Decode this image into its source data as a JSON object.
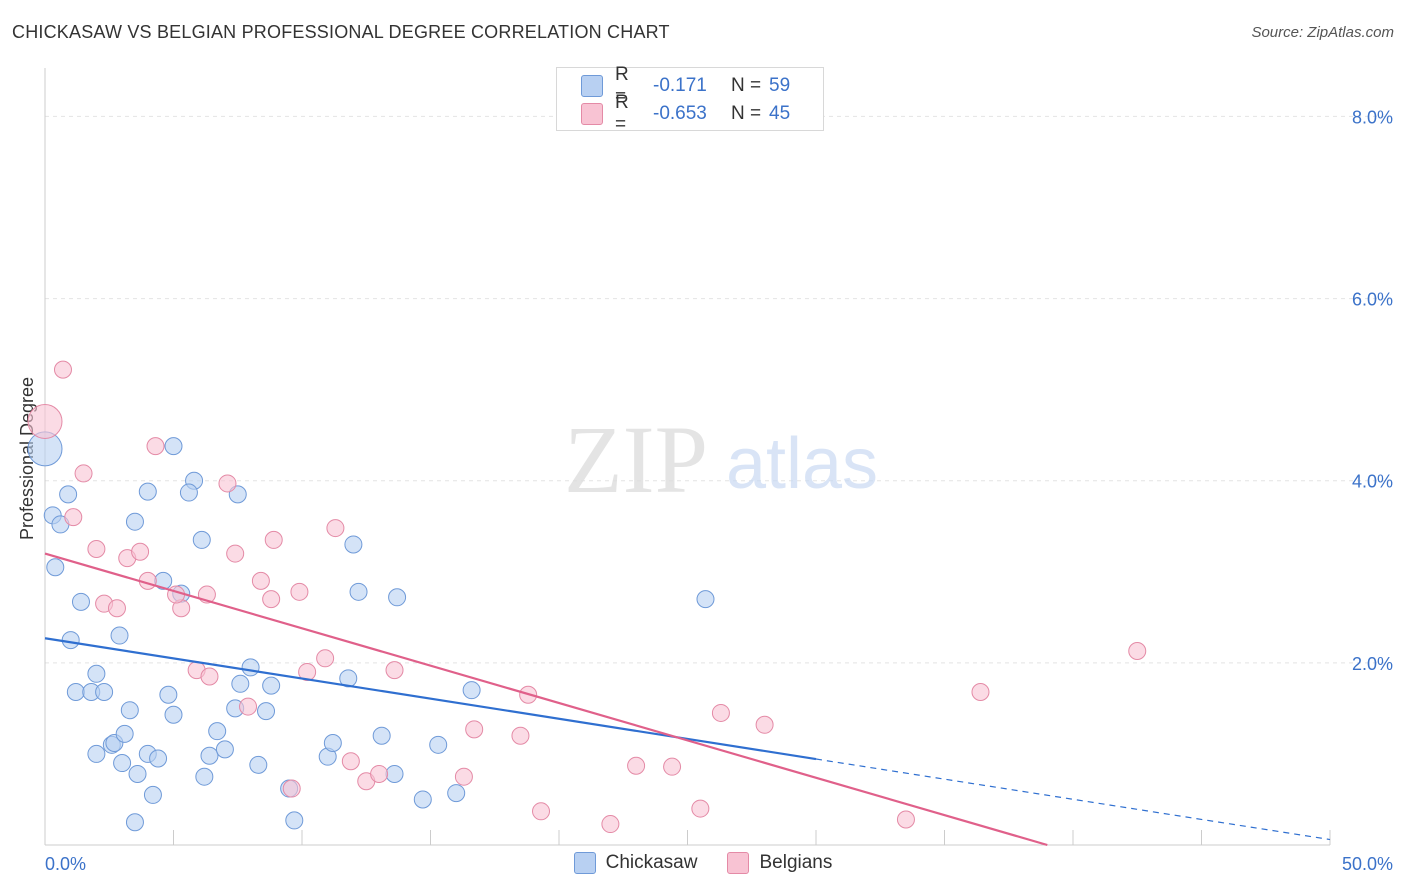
{
  "title": "CHICKASAW VS BELGIAN PROFESSIONAL DEGREE CORRELATION CHART",
  "source": "Source: ZipAtlas.com",
  "watermark": {
    "zip": "ZIP",
    "atlas": "atlas"
  },
  "legend": {
    "r_label": "R =",
    "n_label": "N =",
    "series": [
      {
        "name": "Chickasaw",
        "r": "-0.171",
        "n": "59",
        "fill": "#b8d0f2",
        "stroke": "#6f9ad8"
      },
      {
        "name": "Belgians",
        "r": "-0.653",
        "n": "45",
        "fill": "#f8c3d3",
        "stroke": "#e48aa6"
      }
    ]
  },
  "chart_data": {
    "type": "scatter",
    "title": "CHICKASAW VS BELGIAN PROFESSIONAL DEGREE CORRELATION CHART",
    "xlabel": "",
    "ylabel": "Professional Degree",
    "xlim": [
      0,
      50
    ],
    "ylim": [
      0,
      8.4
    ],
    "x_tick_labels": [
      "0.0%",
      "50.0%"
    ],
    "y_ticks": [
      2,
      4,
      6,
      8
    ],
    "y_tick_labels": [
      "2.0%",
      "4.0%",
      "6.0%",
      "8.0%"
    ],
    "grid": true,
    "series": [
      {
        "name": "Chickasaw",
        "color": "#6f9ad8",
        "fill": "#b8d0f2",
        "line_color": "#2f6fd0",
        "trend": {
          "x0": 0,
          "y0": 2.27,
          "x1": 50,
          "y1": 0.06,
          "solid_until": 30
        },
        "points": [
          [
            0.0,
            4.35
          ],
          [
            0.3,
            3.62
          ],
          [
            0.6,
            3.52
          ],
          [
            0.4,
            3.05
          ],
          [
            0.9,
            3.85
          ],
          [
            1.4,
            2.67
          ],
          [
            1.0,
            2.25
          ],
          [
            1.2,
            1.68
          ],
          [
            1.8,
            1.68
          ],
          [
            2.3,
            1.68
          ],
          [
            2.0,
            1.88
          ],
          [
            2.9,
            2.3
          ],
          [
            3.3,
            1.48
          ],
          [
            2.6,
            1.1
          ],
          [
            2.7,
            1.12
          ],
          [
            3.5,
            3.55
          ],
          [
            4.0,
            3.88
          ],
          [
            5.0,
            4.38
          ],
          [
            5.8,
            4.0
          ],
          [
            5.6,
            3.87
          ],
          [
            6.1,
            3.35
          ],
          [
            7.5,
            3.85
          ],
          [
            4.6,
            2.9
          ],
          [
            5.3,
            2.76
          ],
          [
            4.8,
            1.65
          ],
          [
            5.0,
            1.43
          ],
          [
            3.1,
            1.22
          ],
          [
            2.0,
            1.0
          ],
          [
            4.0,
            1.0
          ],
          [
            4.4,
            0.95
          ],
          [
            3.0,
            0.9
          ],
          [
            3.6,
            0.78
          ],
          [
            4.2,
            0.55
          ],
          [
            3.5,
            0.25
          ],
          [
            6.2,
            0.75
          ],
          [
            6.4,
            0.98
          ],
          [
            7.0,
            1.05
          ],
          [
            6.7,
            1.25
          ],
          [
            7.4,
            1.5
          ],
          [
            7.6,
            1.77
          ],
          [
            8.0,
            1.95
          ],
          [
            8.8,
            1.75
          ],
          [
            8.6,
            1.47
          ],
          [
            8.3,
            0.88
          ],
          [
            9.5,
            0.62
          ],
          [
            9.7,
            0.27
          ],
          [
            11.0,
            0.97
          ],
          [
            11.2,
            1.12
          ],
          [
            11.8,
            1.83
          ],
          [
            12.2,
            2.78
          ],
          [
            12.0,
            3.3
          ],
          [
            13.7,
            2.72
          ],
          [
            13.1,
            1.2
          ],
          [
            13.6,
            0.78
          ],
          [
            14.7,
            0.5
          ],
          [
            15.3,
            1.1
          ],
          [
            16.0,
            0.57
          ],
          [
            16.6,
            1.7
          ],
          [
            25.7,
            2.7
          ]
        ]
      },
      {
        "name": "Belgians",
        "color": "#e48aa6",
        "fill": "#f8c3d3",
        "line_color": "#e0608a",
        "trend": {
          "x0": 0,
          "y0": 3.2,
          "x1": 39,
          "y1": 0.0,
          "solid_until": 39
        },
        "points": [
          [
            0.0,
            4.65
          ],
          [
            0.7,
            5.22
          ],
          [
            1.1,
            3.6
          ],
          [
            1.5,
            4.08
          ],
          [
            2.0,
            3.25
          ],
          [
            2.3,
            2.65
          ],
          [
            2.8,
            2.6
          ],
          [
            3.2,
            3.15
          ],
          [
            3.7,
            3.22
          ],
          [
            4.0,
            2.9
          ],
          [
            4.3,
            4.38
          ],
          [
            5.3,
            2.6
          ],
          [
            5.1,
            2.75
          ],
          [
            5.9,
            1.92
          ],
          [
            6.4,
            1.85
          ],
          [
            6.3,
            2.75
          ],
          [
            7.1,
            3.97
          ],
          [
            7.4,
            3.2
          ],
          [
            7.9,
            1.52
          ],
          [
            8.4,
            2.9
          ],
          [
            8.8,
            2.7
          ],
          [
            8.9,
            3.35
          ],
          [
            9.9,
            2.78
          ],
          [
            9.6,
            0.62
          ],
          [
            10.2,
            1.9
          ],
          [
            10.9,
            2.05
          ],
          [
            11.3,
            3.48
          ],
          [
            11.9,
            0.92
          ],
          [
            12.5,
            0.7
          ],
          [
            13.0,
            0.78
          ],
          [
            13.6,
            1.92
          ],
          [
            16.3,
            0.75
          ],
          [
            16.7,
            1.27
          ],
          [
            18.5,
            1.2
          ],
          [
            18.8,
            1.65
          ],
          [
            19.3,
            0.37
          ],
          [
            22.0,
            0.23
          ],
          [
            23.0,
            0.87
          ],
          [
            24.4,
            0.86
          ],
          [
            25.5,
            0.4
          ],
          [
            26.3,
            1.45
          ],
          [
            28.0,
            1.32
          ],
          [
            33.5,
            0.28
          ],
          [
            36.4,
            1.68
          ],
          [
            42.5,
            2.13
          ]
        ]
      }
    ]
  }
}
